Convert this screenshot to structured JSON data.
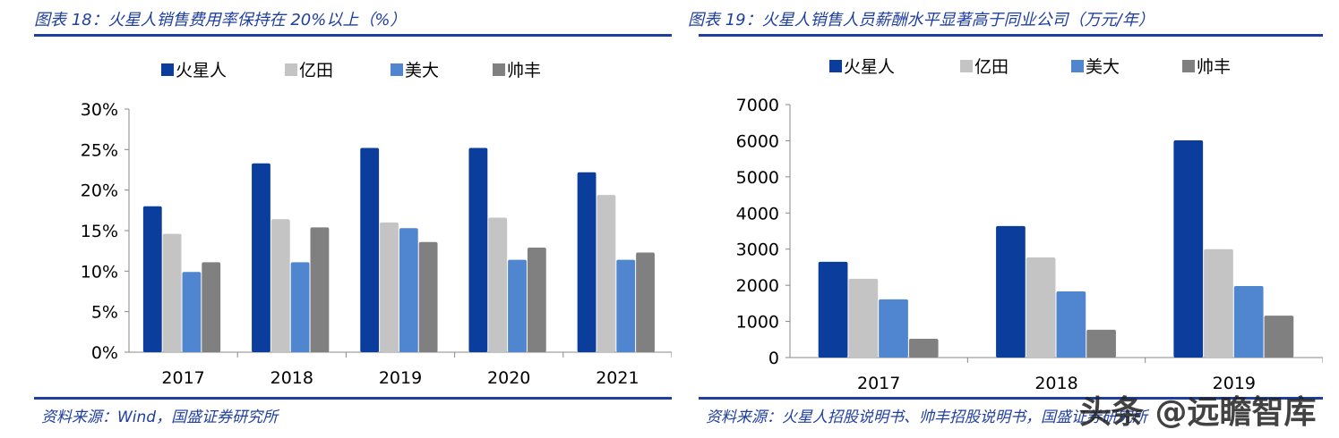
{
  "colors": [
    "#0a3d9c",
    "#c4c4c4",
    "#4f86cf",
    "#808080"
  ],
  "watermark": "头条 @远瞻智库",
  "chart_data": [
    {
      "type": "bar",
      "title": "图表 18：火星人销售费用率保持在 20%以上（%）",
      "source": "资料来源：Wind，国盛证券研究所",
      "categories": [
        "2017",
        "2018",
        "2019",
        "2020",
        "2021"
      ],
      "ylim": [
        0,
        30
      ],
      "yticks": [
        "0%",
        "5%",
        "10%",
        "15%",
        "20%",
        "25%",
        "30%"
      ],
      "ytick_values": [
        0,
        5,
        10,
        15,
        20,
        25,
        30
      ],
      "legend": "top",
      "grid": false,
      "series": [
        {
          "name": "火星人",
          "values": [
            18.0,
            23.3,
            25.2,
            25.2,
            22.2
          ]
        },
        {
          "name": "亿田",
          "values": [
            14.6,
            16.4,
            16.0,
            16.6,
            19.4
          ]
        },
        {
          "name": "美大",
          "values": [
            9.9,
            11.1,
            15.3,
            11.4,
            11.4
          ]
        },
        {
          "name": "帅丰",
          "values": [
            11.1,
            15.4,
            13.6,
            12.9,
            12.3
          ]
        }
      ]
    },
    {
      "type": "bar",
      "title": "图表 19：火星人销售人员薪酬水平显著高于同业公司（万元/年）",
      "source": "资料来源：火星人招股说明书、帅丰招股说明书，国盛证券研究所",
      "categories": [
        "2017",
        "2018",
        "2019"
      ],
      "ylim": [
        0,
        7000
      ],
      "yticks": [
        "0",
        "1000",
        "2000",
        "3000",
        "4000",
        "5000",
        "6000",
        "7000"
      ],
      "ytick_values": [
        0,
        1000,
        2000,
        3000,
        4000,
        5000,
        6000,
        7000
      ],
      "legend": "top",
      "grid": false,
      "series": [
        {
          "name": "火星人",
          "values": [
            2650,
            3640,
            6010
          ]
        },
        {
          "name": "亿田",
          "values": [
            2180,
            2770,
            3000
          ]
        },
        {
          "name": "美大",
          "values": [
            1610,
            1830,
            1980
          ]
        },
        {
          "name": "帅丰",
          "values": [
            520,
            770,
            1160
          ]
        }
      ]
    }
  ]
}
